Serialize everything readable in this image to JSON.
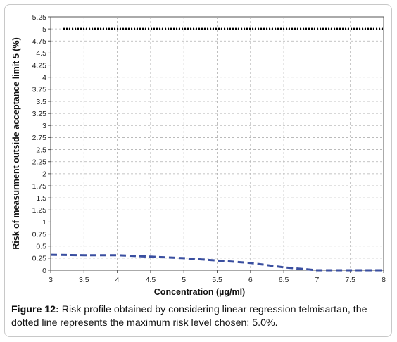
{
  "chart_data": {
    "type": "line",
    "xlabel": "Concentration (µg/ml)",
    "ylabel": "Risk of measurment outside acceptance limit 5 (%)",
    "xlim": [
      3,
      8
    ],
    "ylim": [
      0,
      5.25
    ],
    "x_ticks": [
      "3",
      "3.5",
      "4",
      "4.5",
      "5",
      "5.5",
      "6",
      "6.5",
      "7",
      "7.5",
      "8"
    ],
    "y_ticks": [
      "0",
      "0.25",
      "0.5",
      "0.75",
      "1",
      "1.25",
      "1.5",
      "1.75",
      "2",
      "2.25",
      "2.5",
      "2.75",
      "3",
      "3.25",
      "3.5",
      "3.75",
      "4",
      "4.25",
      "4.5",
      "4.75",
      "5",
      "5.25"
    ],
    "grid": true,
    "series": [
      {
        "style": "dotted",
        "color": "#000000",
        "x": [
          3,
          8
        ],
        "values": [
          5,
          5
        ]
      },
      {
        "style": "dashed",
        "color": "#3a4fa0",
        "x": [
          3,
          3.5,
          4,
          4.5,
          5,
          5.5,
          6,
          6.5,
          7,
          7.5,
          8
        ],
        "values": [
          0.32,
          0.31,
          0.31,
          0.28,
          0.25,
          0.2,
          0.15,
          0.06,
          0.0,
          0.0,
          0.0
        ]
      }
    ]
  },
  "caption": {
    "label": "Figure 12:",
    "text": " Risk profile obtained by considering linear regression telmisartan, the dotted line represents the maximum risk level chosen: 5.0%."
  }
}
